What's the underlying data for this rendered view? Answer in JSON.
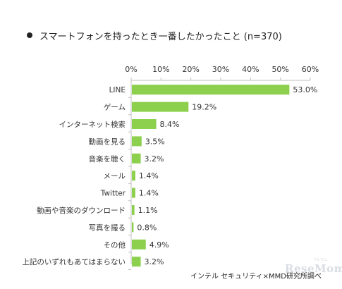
{
  "page": {
    "title": "スマートフォンを持ったとき一番したかったこと (n=370)",
    "footer": "インテル セキュリティ×MMD研究所調べ",
    "watermark": "ReseMom",
    "watermark_small": "リセマム"
  },
  "colors": {
    "bar": "#8cd04d",
    "axis": "#bfbfbf",
    "grid": "#d9d9d9"
  },
  "chart_data": {
    "type": "bar",
    "orientation": "horizontal",
    "title": "スマートフォンを持ったとき一番したかったこと (n=370)",
    "categories": [
      "LINE",
      "ゲーム",
      "インターネット検索",
      "動画を見る",
      "音楽を聴く",
      "メール",
      "Twitter",
      "動画や音楽のダウンロード",
      "写真を撮る",
      "その他",
      "上記のいずれもあてはまらない"
    ],
    "values": [
      53.0,
      19.2,
      8.4,
      3.5,
      3.2,
      1.4,
      1.4,
      1.1,
      0.8,
      4.9,
      3.2
    ],
    "value_labels": [
      "53.0%",
      "19.2%",
      "8.4%",
      "3.5%",
      "3.2%",
      "1.4%",
      "1.4%",
      "1.1%",
      "0.8%",
      "4.9%",
      "3.2%"
    ],
    "xlim": [
      0,
      60
    ],
    "xticks": [
      0,
      10,
      20,
      30,
      40,
      50,
      60
    ],
    "xtick_labels": [
      "0%",
      "10%",
      "20%",
      "30%",
      "40%",
      "50%",
      "60%"
    ],
    "axis_position": "top",
    "grid": false,
    "legend": "none"
  }
}
